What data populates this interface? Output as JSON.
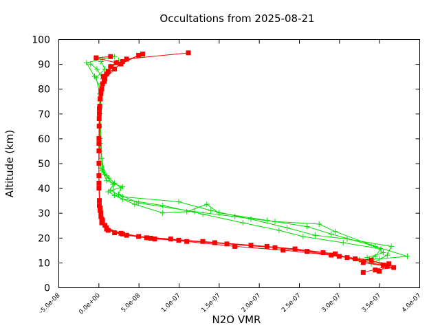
{
  "chart_data": {
    "type": "line",
    "title": "Occultations from 2025-08-21",
    "xlabel": "N2O VMR",
    "ylabel": "Altitude (km)",
    "xlim": [
      -5e-08,
      4e-07
    ],
    "ylim": [
      0,
      100
    ],
    "xticks": [
      -5e-08,
      0,
      5e-08,
      1e-07,
      1.5e-07,
      2e-07,
      2.5e-07,
      3e-07,
      3.5e-07,
      4e-07
    ],
    "xtick_labels": [
      "-5.0e-08",
      "0.0e+00",
      "5.0e-08",
      "1.0e-07",
      "1.5e-07",
      "2.0e-07",
      "2.5e-07",
      "3.0e-07",
      "3.5e-07",
      "4.0e-07"
    ],
    "yticks": [
      0,
      10,
      20,
      30,
      40,
      50,
      60,
      70,
      80,
      90,
      100
    ],
    "ytick_labels": [
      "0",
      "10",
      "20",
      "30",
      "40",
      "50",
      "60",
      "70",
      "80",
      "90",
      "100"
    ],
    "grid": false,
    "legend": "none",
    "series": [
      {
        "color": "#00dd00",
        "marker": "plus",
        "profiles": [
          [
            [
              3.3e-07,
              10.5
            ],
            [
              3.45e-07,
              12.5
            ],
            [
              3.52e-07,
              15.5
            ],
            [
              3.05e-07,
              18.0
            ],
            [
              2.55e-07,
              20.5
            ],
            [
              2.25e-07,
              23.0
            ],
            [
              1.8e-07,
              26.0
            ],
            [
              1.3e-07,
              29.5
            ],
            [
              8e-08,
              33.0
            ],
            [
              3e-08,
              35.5
            ],
            [
              1.2e-08,
              38.5
            ],
            [
              2e-08,
              42.0
            ],
            [
              1e-08,
              45.0
            ],
            [
              3e-09,
              48.0
            ],
            [
              1.5e-09,
              55.0
            ],
            [
              1e-09,
              65.0
            ],
            [
              2e-09,
              75.0
            ],
            [
              4e-09,
              82.0
            ],
            [
              1e-08,
              86.0
            ],
            [
              1.5e-08,
              89.0
            ],
            [
              2.5e-08,
              91.5
            ]
          ],
          [
            [
              3.4e-07,
              9.5
            ],
            [
              3.6e-07,
              13.0
            ],
            [
              3.65e-07,
              16.5
            ],
            [
              3.1e-07,
              19.5
            ],
            [
              2.7e-07,
              21.0
            ],
            [
              2.35e-07,
              24.0
            ],
            [
              1.9e-07,
              27.5
            ],
            [
              1.4e-07,
              31.0
            ],
            [
              1e-07,
              34.5
            ],
            [
              3e-08,
              36.5
            ],
            [
              1.5e-08,
              39.0
            ],
            [
              3e-08,
              40.5
            ],
            [
              1e-08,
              43.0
            ],
            [
              5e-09,
              47.0
            ],
            [
              2e-09,
              60.0
            ],
            [
              3e-09,
              80.0
            ],
            [
              -5e-09,
              85.0
            ],
            [
              -1.5e-08,
              90.5
            ],
            [
              5e-09,
              92.0
            ],
            [
              2e-08,
              93.0
            ]
          ],
          [
            [
              3.25e-07,
              11.0
            ],
            [
              3.5e-07,
              11.5
            ],
            [
              3.85e-07,
              12.5
            ],
            [
              3.4e-07,
              17.0
            ],
            [
              2.9e-07,
              21.5
            ],
            [
              2.6e-07,
              24.5
            ],
            [
              2.1e-07,
              27.0
            ],
            [
              1.5e-07,
              30.0
            ],
            [
              1.35e-07,
              33.5
            ],
            [
              1.1e-07,
              30.5
            ],
            [
              8e-08,
              30.0
            ],
            [
              4.5e-08,
              33.5
            ],
            [
              2e-08,
              37.0
            ],
            [
              1.8e-08,
              41.5
            ],
            [
              8e-09,
              45.5
            ],
            [
              4e-09,
              52.0
            ],
            [
              2e-09,
              70.0
            ],
            [
              5e-09,
              84.0
            ],
            [
              -2e-09,
              88.0
            ],
            [
              -1e-08,
              90.0
            ]
          ],
          [
            [
              3.35e-07,
              12.0
            ],
            [
              3.55e-07,
              14.0
            ],
            [
              3.45e-07,
              16.5
            ],
            [
              2.95e-07,
              22.5
            ],
            [
              2.75e-07,
              25.5
            ],
            [
              2.2e-07,
              26.5
            ],
            [
              1.7e-07,
              28.5
            ],
            [
              1.2e-07,
              30.5
            ],
            [
              5e-08,
              34.0
            ],
            [
              2.5e-08,
              37.5
            ],
            [
              2.8e-08,
              40.0
            ],
            [
              1.3e-08,
              44.0
            ],
            [
              6e-09,
              46.5
            ],
            [
              2e-09,
              58.0
            ],
            [
              1.5e-09,
              78.0
            ],
            [
              -3e-09,
              84.5
            ],
            [
              8e-09,
              88.0
            ],
            [
              3e-09,
              91.0
            ]
          ]
        ]
      },
      {
        "color": "#ff0000",
        "marker": "square",
        "profiles": [
          [
            [
              3.3e-07,
              6.0
            ],
            [
              3.6e-07,
              8.5
            ],
            [
              3.1e-07,
              12.0
            ],
            [
              2.8e-07,
              14.0
            ],
            [
              2.2e-07,
              16.0
            ],
            [
              1.6e-07,
              17.5
            ],
            [
              1e-07,
              19.0
            ],
            [
              6e-08,
              20.0
            ],
            [
              3e-08,
              21.5
            ],
            [
              1e-08,
              24.0
            ],
            [
              5e-09,
              27.0
            ],
            [
              3e-09,
              30.0
            ],
            [
              1e-09,
              35.0
            ],
            [
              5e-10,
              45.0
            ],
            [
              5e-10,
              60.0
            ],
            [
              1e-09,
              70.0
            ],
            [
              3e-09,
              78.0
            ],
            [
              6e-09,
              85.0
            ],
            [
              1.5e-08,
              89.0
            ],
            [
              3.5e-08,
              92.0
            ],
            [
              1.12e-07,
              94.5
            ]
          ],
          [
            [
              3.45e-07,
              7.0
            ],
            [
              3.68e-07,
              8.0
            ],
            [
              3.3e-07,
              10.0
            ],
            [
              2.95e-07,
              13.5
            ],
            [
              2.45e-07,
              15.5
            ],
            [
              1.9e-07,
              17.0
            ],
            [
              1.3e-07,
              18.5
            ],
            [
              7e-08,
              19.5
            ],
            [
              3.5e-08,
              21.0
            ],
            [
              1.2e-08,
              23.0
            ],
            [
              4e-09,
              26.0
            ],
            [
              2e-09,
              31.0
            ],
            [
              5e-10,
              40.0
            ],
            [
              5e-10,
              55.0
            ],
            [
              8e-10,
              68.0
            ],
            [
              2e-09,
              76.0
            ],
            [
              5e-09,
              82.0
            ],
            [
              1e-08,
              86.0
            ],
            [
              2.8e-08,
              90.0
            ],
            [
              5e-08,
              93.5
            ]
          ],
          [
            [
              3.55e-07,
              9.0
            ],
            [
              3.4e-07,
              11.0
            ],
            [
              3e-07,
              12.5
            ],
            [
              2.6e-07,
              14.5
            ],
            [
              2.1e-07,
              16.5
            ],
            [
              1.45e-07,
              18.0
            ],
            [
              9e-08,
              19.5
            ],
            [
              5e-08,
              20.5
            ],
            [
              2e-08,
              22.0
            ],
            [
              8e-09,
              25.0
            ],
            [
              3e-09,
              28.5
            ],
            [
              1e-09,
              33.0
            ],
            [
              5e-10,
              50.0
            ],
            [
              8e-10,
              65.0
            ],
            [
              1.5e-09,
              73.0
            ],
            [
              4e-09,
              80.0
            ],
            [
              8e-09,
              84.0
            ],
            [
              2e-08,
              88.0
            ],
            [
              3e-08,
              91.0
            ],
            [
              5.5e-08,
              94.0
            ]
          ],
          [
            [
              3.5e-07,
              6.5
            ],
            [
              3.62e-07,
              9.5
            ],
            [
              3.2e-07,
              11.5
            ],
            [
              2.9e-07,
              13.0
            ],
            [
              2.3e-07,
              15.0
            ],
            [
              1.7e-07,
              16.5
            ],
            [
              1.1e-07,
              18.5
            ],
            [
              6.5e-08,
              19.8
            ],
            [
              2.8e-08,
              21.8
            ],
            [
              1e-08,
              23.5
            ],
            [
              4e-09,
              27.5
            ],
            [
              2e-09,
              32.0
            ],
            [
              5e-10,
              42.0
            ],
            [
              5e-10,
              58.0
            ],
            [
              1e-09,
              72.0
            ],
            [
              3e-09,
              79.0
            ],
            [
              7e-09,
              83.0
            ],
            [
              1.2e-08,
              87.0
            ],
            [
              2.2e-08,
              90.5
            ],
            [
              -3e-09,
              92.5
            ],
            [
              1.5e-08,
              93.0
            ]
          ]
        ]
      }
    ]
  }
}
